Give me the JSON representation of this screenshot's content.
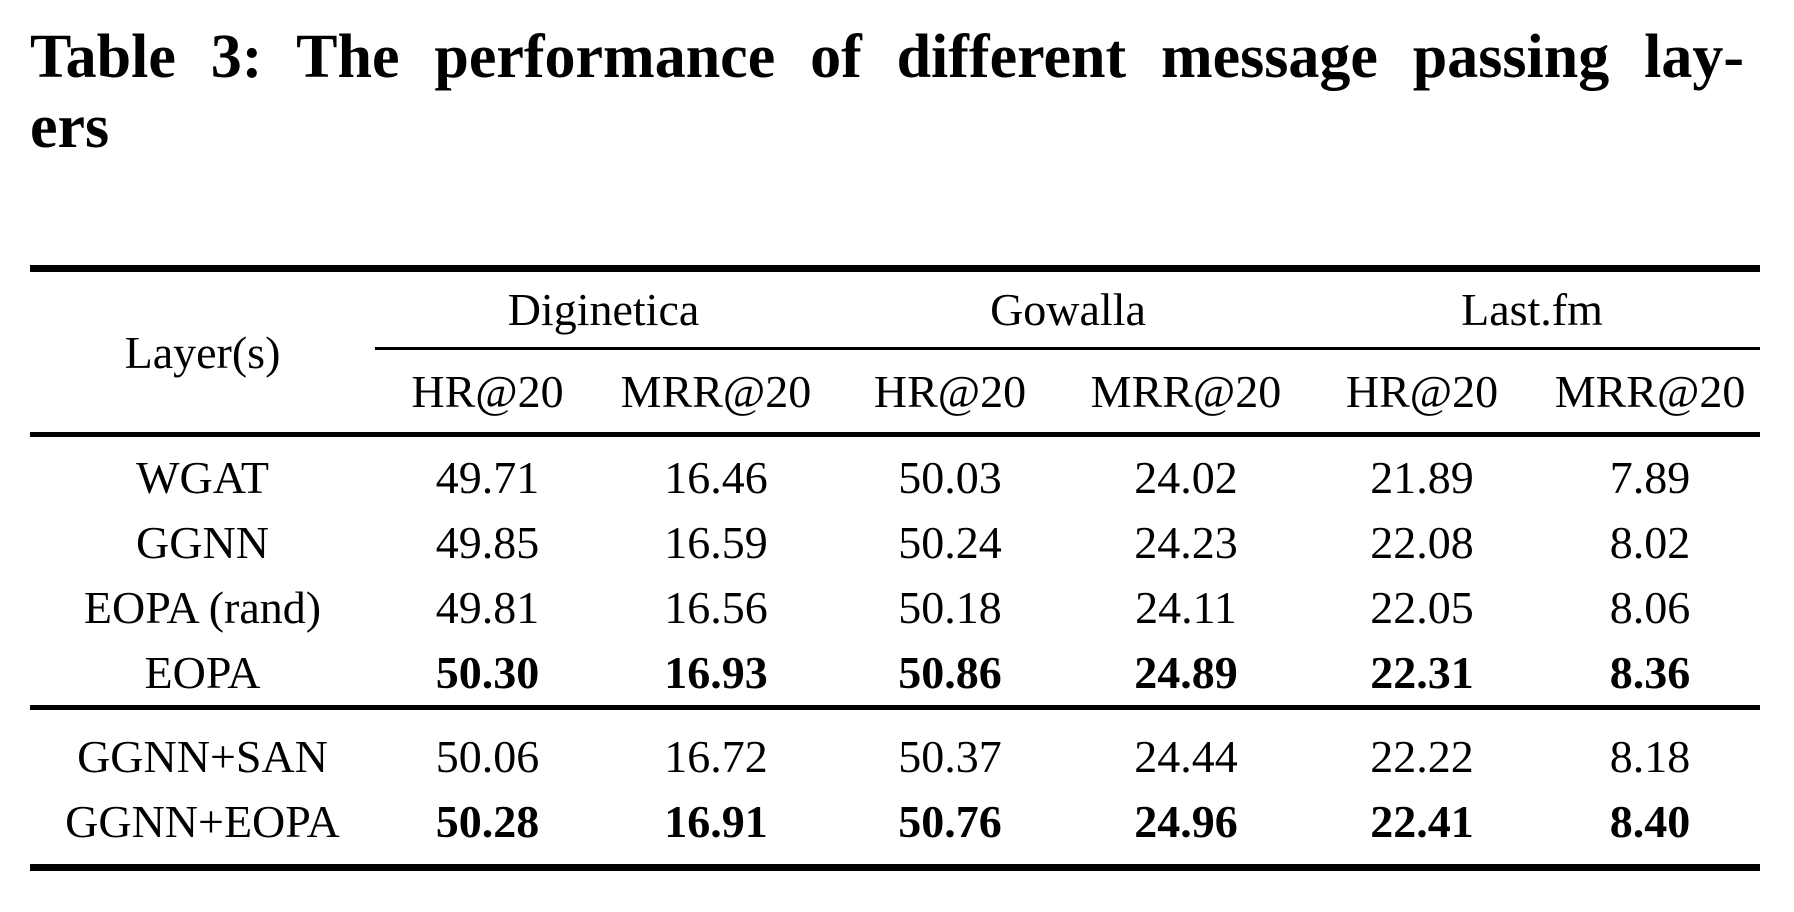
{
  "caption": {
    "line1": "Table 3: The performance of different message passing lay-",
    "line2": "ers"
  },
  "table": {
    "corner_header": "Layer(s)",
    "groups": [
      {
        "name": "Diginetica"
      },
      {
        "name": "Gowalla"
      },
      {
        "name": "Last.fm"
      }
    ],
    "metric_headers": [
      "HR@20",
      "MRR@20",
      "HR@20",
      "MRR@20",
      "HR@20",
      "MRR@20"
    ],
    "rows": [
      {
        "label": "WGAT",
        "values": [
          "49.71",
          "16.46",
          "50.03",
          "24.02",
          "21.89",
          "7.89"
        ],
        "bold": false,
        "section": 1
      },
      {
        "label": "GGNN",
        "values": [
          "49.85",
          "16.59",
          "50.24",
          "24.23",
          "22.08",
          "8.02"
        ],
        "bold": false,
        "section": 1
      },
      {
        "label": "EOPA (rand)",
        "values": [
          "49.81",
          "16.56",
          "50.18",
          "24.11",
          "22.05",
          "8.06"
        ],
        "bold": false,
        "section": 1
      },
      {
        "label": "EOPA",
        "values": [
          "50.30",
          "16.93",
          "50.86",
          "24.89",
          "22.31",
          "8.36"
        ],
        "bold": true,
        "section": 1
      },
      {
        "label": "GGNN+SAN",
        "values": [
          "50.06",
          "16.72",
          "50.37",
          "24.44",
          "22.22",
          "8.18"
        ],
        "bold": false,
        "section": 2
      },
      {
        "label": "GGNN+EOPA",
        "values": [
          "50.28",
          "16.91",
          "50.76",
          "24.96",
          "22.41",
          "8.40"
        ],
        "bold": true,
        "section": 2
      }
    ],
    "colors": {
      "text": "#000000",
      "background": "#ffffff",
      "rule": "#000000"
    }
  }
}
